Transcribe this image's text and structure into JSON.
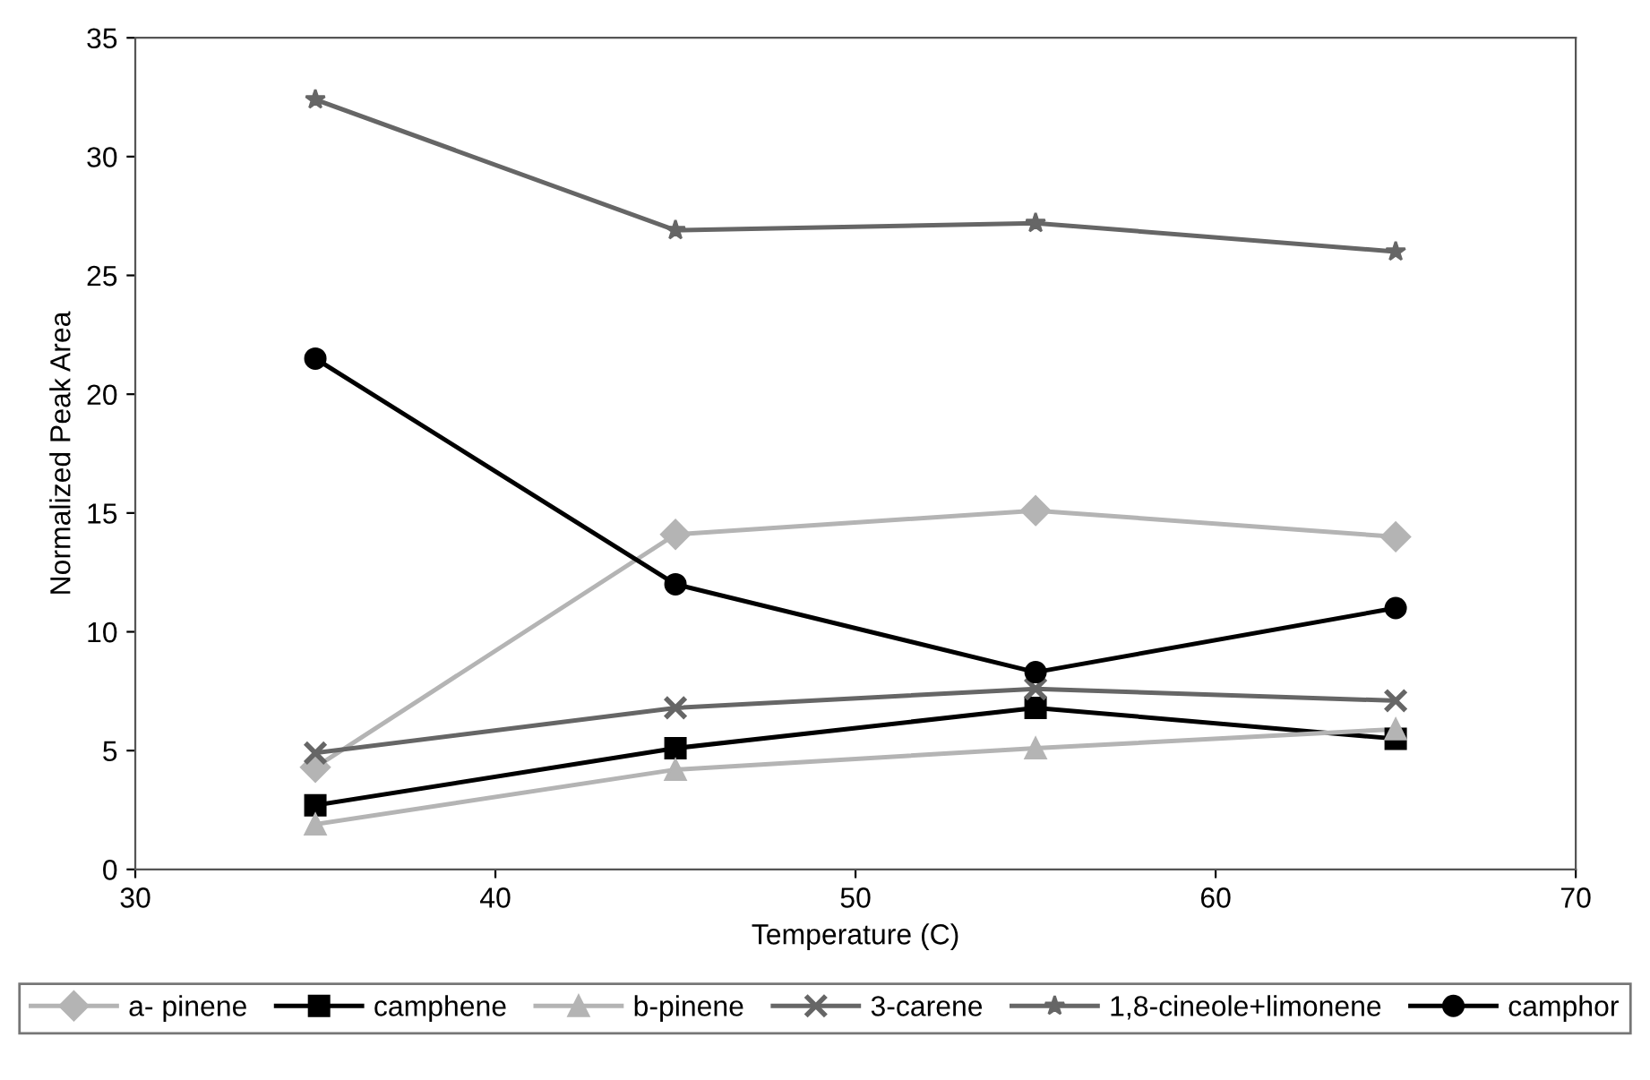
{
  "chart_data": {
    "type": "line",
    "xlabel": "Temperature (C)",
    "ylabel": "Normalized Peak Area",
    "x": [
      35,
      45,
      55,
      65
    ],
    "series": [
      {
        "name": "a- pinene",
        "color": "#b4b4b4",
        "marker": "diamond",
        "values": [
          4.3,
          14.1,
          15.1,
          14.0
        ]
      },
      {
        "name": "camphene",
        "color": "#000000",
        "marker": "square",
        "values": [
          2.7,
          5.1,
          6.8,
          5.5
        ]
      },
      {
        "name": "b-pinene",
        "color": "#b4b4b4",
        "marker": "triangle",
        "values": [
          1.9,
          4.2,
          5.1,
          5.9
        ]
      },
      {
        "name": "3-carene",
        "color": "#666666",
        "marker": "cross",
        "values": [
          4.9,
          6.8,
          7.6,
          7.1
        ]
      },
      {
        "name": "1,8-cineole+limonene",
        "color": "#666666",
        "marker": "star",
        "values": [
          32.4,
          26.9,
          27.2,
          26.0
        ]
      },
      {
        "name": "camphor",
        "color": "#000000",
        "marker": "circle",
        "values": [
          21.5,
          12.0,
          8.3,
          11.0
        ]
      }
    ],
    "xlim": [
      30,
      70
    ],
    "xticks": [
      30,
      40,
      50,
      60,
      70
    ],
    "ylim": [
      0,
      35
    ],
    "yticks": [
      0,
      5,
      10,
      15,
      20,
      25,
      30,
      35
    ],
    "grid": false,
    "legend": "bottom",
    "line_style": "solid"
  }
}
